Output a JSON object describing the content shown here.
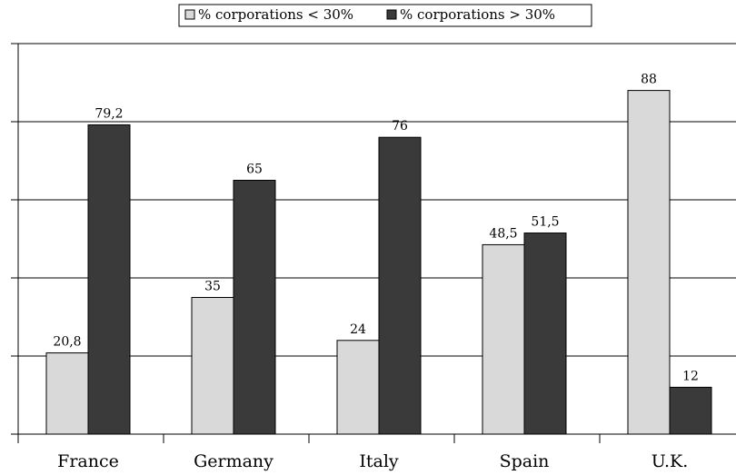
{
  "chart_data": {
    "type": "bar",
    "categories": [
      "France",
      "Germany",
      "Italy",
      "Spain",
      "U.K."
    ],
    "series": [
      {
        "name": "% corporations < 30%",
        "color": "#d9d9d9",
        "values": [
          20.8,
          35,
          24,
          48.5,
          88
        ],
        "value_labels": [
          "20,8",
          "35",
          "24",
          "48,5",
          "88"
        ]
      },
      {
        "name": "% corporations > 30%",
        "color": "#3a3a3a",
        "values": [
          79.2,
          65,
          76,
          51.5,
          12
        ],
        "value_labels": [
          "79,2",
          "65",
          "76",
          "51,5",
          "12"
        ]
      }
    ],
    "ylim": [
      0,
      100
    ],
    "yticks": [
      0,
      20,
      40,
      60,
      80,
      100
    ],
    "grid": true,
    "legend": "top"
  }
}
